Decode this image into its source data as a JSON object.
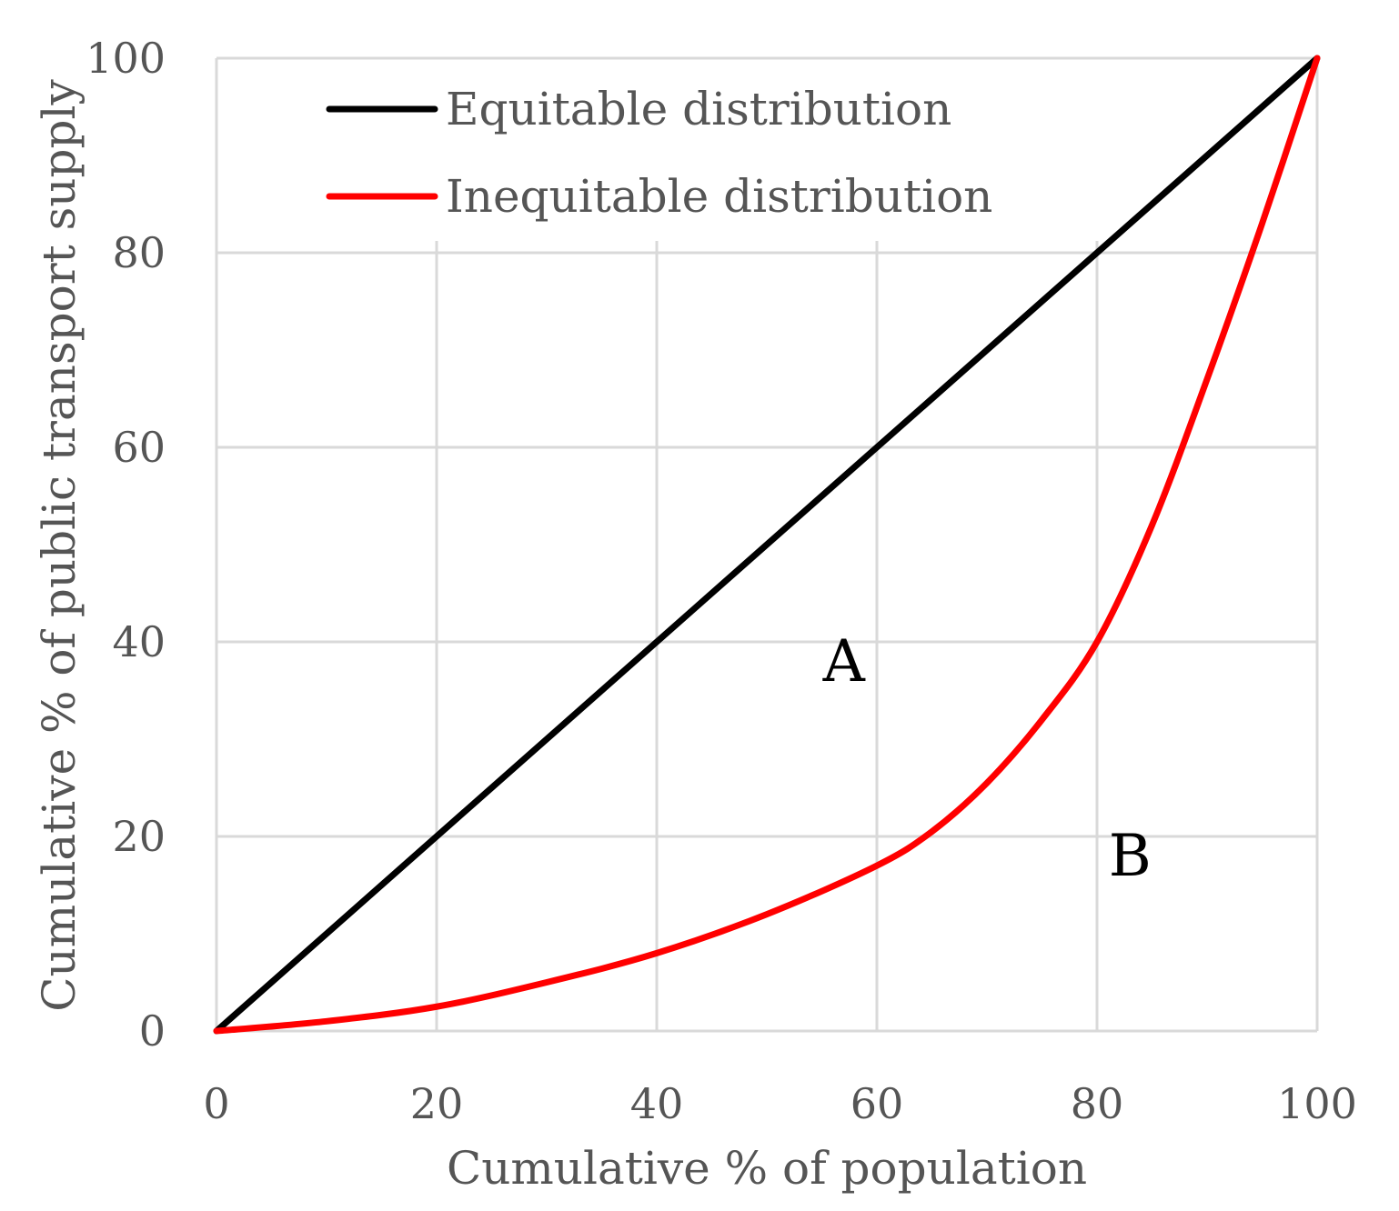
{
  "chart_data": {
    "type": "line",
    "title": "",
    "xlabel": "Cumulative % of population",
    "ylabel": "Cumulative % of public transport supply",
    "xlim": [
      0,
      100
    ],
    "ylim": [
      0,
      100
    ],
    "xticks": [
      "0",
      "20",
      "40",
      "60",
      "80",
      "100"
    ],
    "yticks": [
      "0",
      "20",
      "40",
      "60",
      "80",
      "100"
    ],
    "grid": true,
    "legend_position": "top-left",
    "series": [
      {
        "name": "Equitable distribution",
        "color": "#000000",
        "x": [
          0,
          100
        ],
        "y": [
          0,
          100
        ]
      },
      {
        "name": "Inequitable distribution",
        "color": "#ff0000",
        "x": [
          0,
          10,
          20,
          30,
          40,
          50,
          60,
          65,
          70,
          75,
          80,
          85,
          90,
          95,
          100
        ],
        "y": [
          0,
          1,
          2.5,
          5,
          8,
          12,
          17,
          20.5,
          25.5,
          32,
          40,
          52,
          67,
          83,
          100
        ]
      }
    ],
    "annotations": [
      {
        "text": "A",
        "x": 57,
        "y": 36
      },
      {
        "text": "B",
        "x": 83,
        "y": 16
      }
    ]
  }
}
